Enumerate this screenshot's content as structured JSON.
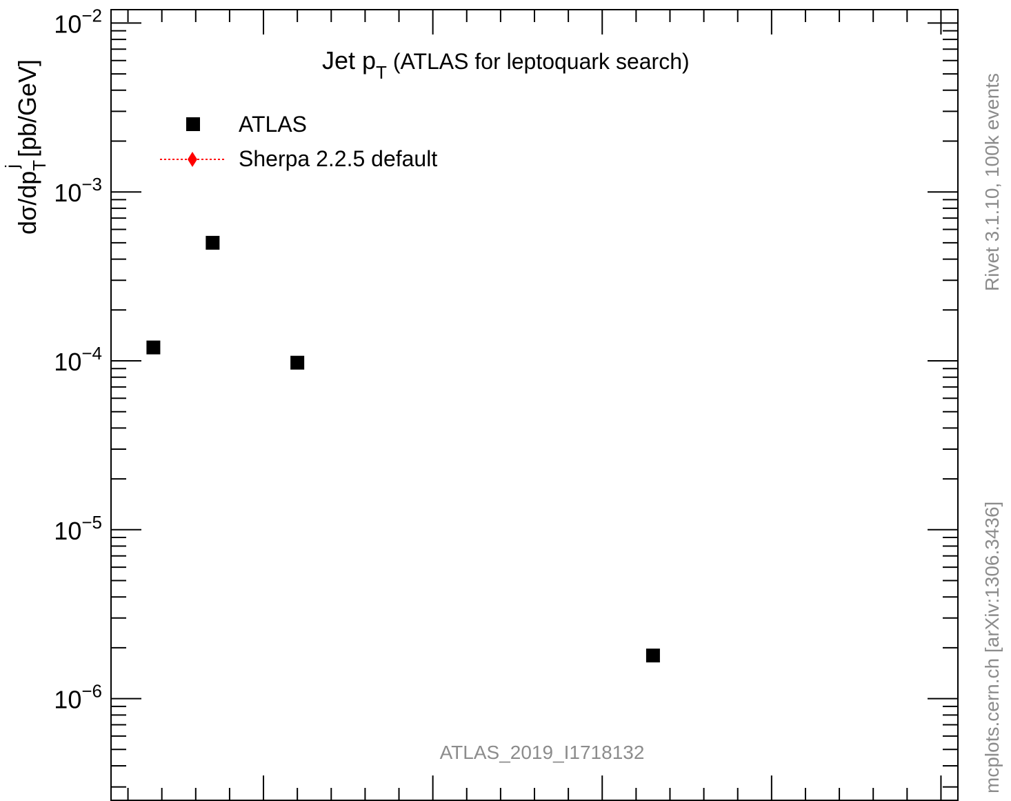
{
  "chart_data": {
    "type": "scatter",
    "title": "Jet p",
    "title_sub": "T",
    "title_rest": " (ATLAS for leptoquark search)",
    "ylabel_parts": {
      "main": "dσ/dp",
      "sub": "T",
      "sup": "j",
      "unit": " [pb/GeV]"
    },
    "y_scale": "log",
    "ylim": [
      2.5e-07,
      0.012
    ],
    "xlim": [
      0,
      1000
    ],
    "y_ticks": [
      {
        "base": "10",
        "exp": "−2",
        "value": 0.01
      },
      {
        "base": "10",
        "exp": "−3",
        "value": 0.001
      },
      {
        "base": "10",
        "exp": "−4",
        "value": 0.0001
      },
      {
        "base": "10",
        "exp": "−5",
        "value": 1e-05
      },
      {
        "base": "10",
        "exp": "−6",
        "value": 1e-06
      }
    ],
    "legend": [
      {
        "name": "ATLAS",
        "marker": "square",
        "color": "#000000"
      },
      {
        "name": "Sherpa 2.2.5 default",
        "marker": "diamond",
        "color": "#ff0000",
        "line": "dotted"
      }
    ],
    "legend_position": "top-left",
    "series": [
      {
        "name": "ATLAS",
        "x": [
          50,
          120,
          220,
          640
        ],
        "y": [
          0.00012,
          0.0005,
          9.75e-05,
          1.8e-06
        ]
      }
    ],
    "analysis_label": "ATLAS_2019_I1718132",
    "colors": {
      "data": "#000000",
      "mc": "#ff0000",
      "watermark": "#8c8c8c"
    }
  },
  "side_labels": {
    "right_top": "Rivet 3.1.10,  100k events",
    "right_bottom": "mcplots.cern.ch [arXiv:1306.3436]"
  }
}
